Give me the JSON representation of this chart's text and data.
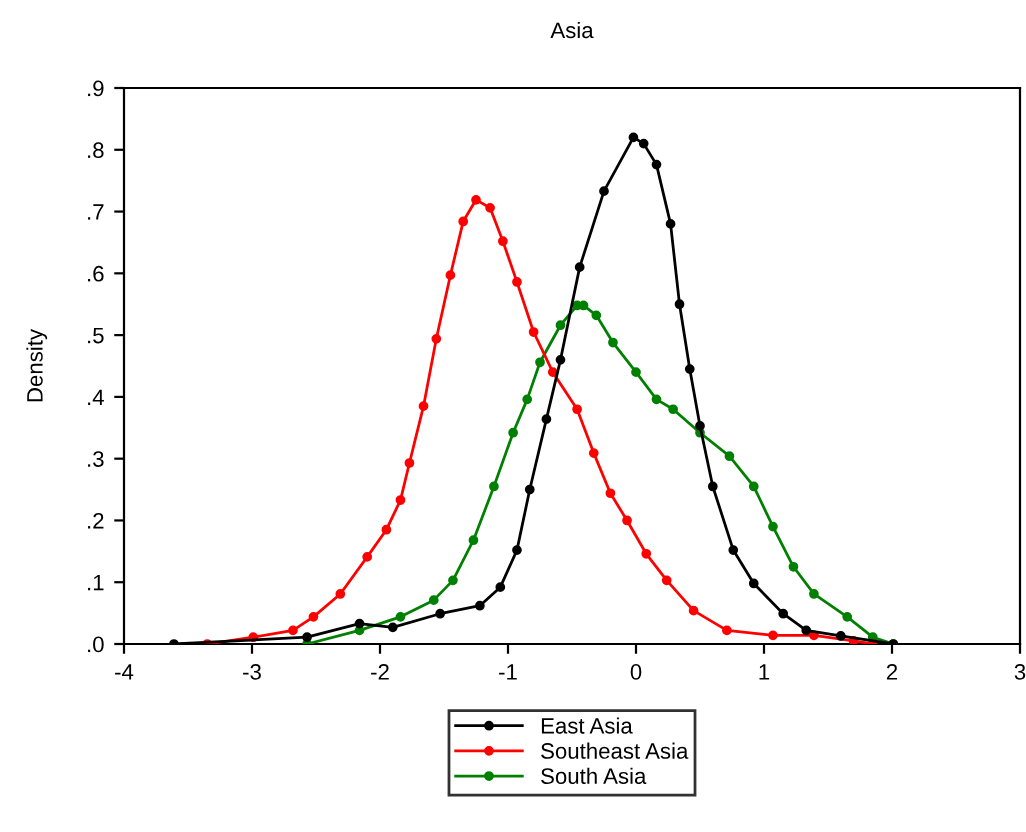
{
  "chart_data": {
    "type": "line",
    "title": "Asia",
    "ylabel": "Density",
    "xlim": [
      -4,
      3
    ],
    "xticks": [
      -4,
      -3,
      -2,
      -1,
      0,
      1,
      2,
      3
    ],
    "ylim": [
      0,
      0.9
    ],
    "yticks": [
      {
        "value": 0,
        "label": ".0"
      },
      {
        "value": 0.1,
        "label": ".1"
      },
      {
        "value": 0.2,
        "label": ".2"
      },
      {
        "value": 0.3,
        "label": ".3"
      },
      {
        "value": 0.4,
        "label": ".4"
      },
      {
        "value": 0.5,
        "label": ".5"
      },
      {
        "value": 0.6,
        "label": ".6"
      },
      {
        "value": 0.7,
        "label": ".7"
      },
      {
        "value": 0.8,
        "label": ".8"
      },
      {
        "value": 0.9,
        "label": ".9"
      }
    ],
    "grid": false,
    "legend": "bottom",
    "marker": "circle",
    "line_style": "solid",
    "series": [
      {
        "name": "East Asia",
        "color": "#000000",
        "x": [
          -3.61,
          -2.57,
          -2.16,
          -1.9,
          -1.53,
          -1.22,
          -1.06,
          -0.93,
          -0.83,
          -0.7,
          -0.59,
          -0.44,
          -0.25,
          -0.02,
          0.06,
          0.16,
          0.27,
          0.34,
          0.42,
          0.5,
          0.6,
          0.76,
          0.92,
          1.15,
          1.33,
          1.6,
          2.01
        ],
        "values": [
          0,
          0.011,
          0.033,
          0.027,
          0.049,
          0.062,
          0.092,
          0.152,
          0.25,
          0.364,
          0.46,
          0.61,
          0.733,
          0.82,
          0.81,
          0.776,
          0.68,
          0.55,
          0.445,
          0.353,
          0.255,
          0.152,
          0.098,
          0.049,
          0.022,
          0.013,
          0
        ]
      },
      {
        "name": "Southeast Asia",
        "color": "#ff0000",
        "x": [
          -3.35,
          -2.99,
          -2.68,
          -2.52,
          -2.31,
          -2.1,
          -1.95,
          -1.84,
          -1.77,
          -1.66,
          -1.56,
          -1.45,
          -1.35,
          -1.25,
          -1.14,
          -1.04,
          -0.93,
          -0.8,
          -0.65,
          -0.46,
          -0.33,
          -0.2,
          -0.07,
          0.08,
          0.24,
          0.45,
          0.71,
          1.07,
          1.39,
          1.7,
          1.85
        ],
        "values": [
          0,
          0.011,
          0.022,
          0.044,
          0.081,
          0.141,
          0.185,
          0.233,
          0.293,
          0.385,
          0.494,
          0.597,
          0.684,
          0.719,
          0.706,
          0.652,
          0.586,
          0.505,
          0.44,
          0.38,
          0.309,
          0.244,
          0.2,
          0.146,
          0.103,
          0.054,
          0.022,
          0.014,
          0.014,
          0.005,
          0
        ]
      },
      {
        "name": "South Asia",
        "color": "#008000",
        "x": [
          -2.57,
          -2.16,
          -1.84,
          -1.58,
          -1.43,
          -1.27,
          -1.11,
          -0.96,
          -0.85,
          -0.75,
          -0.59,
          -0.46,
          -0.41,
          -0.31,
          -0.18,
          0.0,
          0.16,
          0.29,
          0.5,
          0.73,
          0.92,
          1.07,
          1.23,
          1.39,
          1.65,
          1.85,
          2.01
        ],
        "values": [
          0,
          0.022,
          0.044,
          0.071,
          0.103,
          0.168,
          0.255,
          0.342,
          0.396,
          0.456,
          0.516,
          0.548,
          0.548,
          0.532,
          0.488,
          0.44,
          0.396,
          0.38,
          0.342,
          0.304,
          0.255,
          0.19,
          0.125,
          0.081,
          0.044,
          0.011,
          0
        ]
      }
    ]
  }
}
